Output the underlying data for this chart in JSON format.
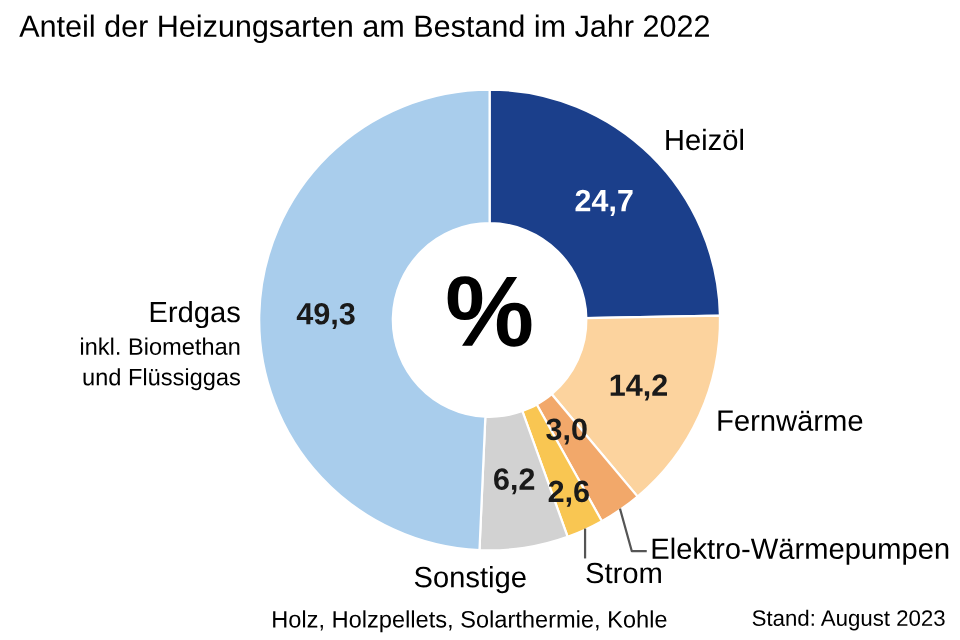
{
  "chart_data": {
    "type": "donut",
    "title": "Anteil der Heizungsarten am Bestand im Jahr 2022",
    "categories": [
      "Heizöl",
      "Fernwärme",
      "Elektro-Wärmepumpen",
      "Strom",
      "Sonstige",
      "Erdgas"
    ],
    "values": [
      24.7,
      14.2,
      3.0,
      2.6,
      6.2,
      49.3
    ],
    "value_labels": [
      "24,7",
      "14,2",
      "3,0",
      "2,6",
      "6,2",
      "49,3"
    ],
    "colors": [
      "#1b3f8b",
      "#fcd39e",
      "#f2a86a",
      "#f9c652",
      "#d2d2d2",
      "#a9cdec"
    ],
    "annotations": [
      "%",
      "inkl. Biomethan\nund Flüssiggas",
      "Holz, Holzpellets, Solarthermie, Kohle",
      "Stand: August 2023"
    ],
    "legend": false
  }
}
